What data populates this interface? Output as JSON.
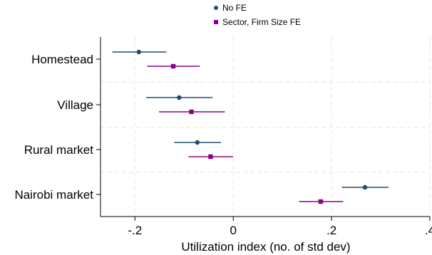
{
  "chart_data": {
    "type": "scatter",
    "subtype": "coefficient-plot",
    "xlabel": "Utilization index (no. of std dev)",
    "ylabel": "",
    "categories": [
      "Homestead",
      "Village",
      "Rural market",
      "Nairobi market"
    ],
    "xlim": [
      -0.27,
      0.4
    ],
    "xticks": [
      -0.2,
      0,
      0.2,
      0.4
    ],
    "xtick_labels": [
      "-.2",
      "0",
      ".2",
      ".4"
    ],
    "grid": true,
    "legend_position": "top-center",
    "series": [
      {
        "name": "No FE",
        "marker": "circle",
        "color": "#1f4e6e",
        "estimates": [
          -0.192,
          -0.11,
          -0.073,
          0.268
        ],
        "ci_low": [
          -0.246,
          -0.177,
          -0.12,
          0.221
        ],
        "ci_high": [
          -0.136,
          -0.042,
          -0.025,
          0.316
        ]
      },
      {
        "name": "Sector, Firm Size FE",
        "marker": "square",
        "color": "#8b008b",
        "estimates": [
          -0.122,
          -0.085,
          -0.046,
          0.178
        ],
        "ci_low": [
          -0.175,
          -0.151,
          -0.091,
          0.134
        ],
        "ci_high": [
          -0.068,
          -0.017,
          0.0,
          0.224
        ]
      }
    ]
  }
}
